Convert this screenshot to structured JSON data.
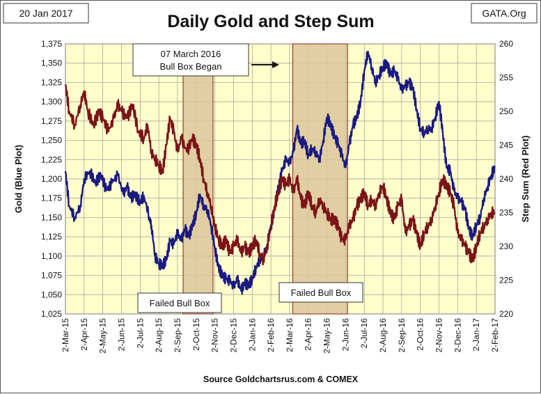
{
  "header": {
    "date": "20 Jan 2017",
    "site": "GATA.Org",
    "source": "Source Goldchartsrus.com & COMEX"
  },
  "annotations": {
    "callout_line1": "07 March 2016",
    "callout_line2": "Bull Box Began",
    "failed_box_1": "Failed Bull Box",
    "failed_box_2": "Failed Bull Box"
  },
  "colors": {
    "plot_bg": "#ffffcc",
    "gold": "#1a1a80",
    "stepsum": "#7a1418",
    "box_fill": "#dcc69a",
    "box_edge": "#8b1a1a"
  },
  "chart_data": {
    "type": "line",
    "title": "Daily Gold and Step Sum",
    "xlabel": "",
    "ylabel": "Gold (Blue Plot)",
    "y2label": "Step Sum (Red Plot)",
    "ylim": [
      1025,
      1375
    ],
    "y2lim": [
      220,
      260
    ],
    "yticks": [
      "1,025",
      "1,050",
      "1,075",
      "1,100",
      "1,125",
      "1,150",
      "1,175",
      "1,200",
      "1,225",
      "1,250",
      "1,275",
      "1,300",
      "1,325",
      "1,350",
      "1,375"
    ],
    "y2ticks": [
      "220",
      "225",
      "230",
      "235",
      "240",
      "245",
      "250",
      "255",
      "260"
    ],
    "xticks": [
      "2-Mar-15",
      "2-Apr-15",
      "2-May-15",
      "2-Jun-15",
      "2-Jul-15",
      "2-Aug-15",
      "2-Sep-15",
      "2-Oct-15",
      "2-Nov-15",
      "2-Dec-15",
      "2-Jan-16",
      "2-Feb-16",
      "2-Mar-16",
      "2-Apr-16",
      "2-May-16",
      "2-Jun-16",
      "2-Jul-16",
      "2-Aug-16",
      "2-Sep-16",
      "2-Oct-16",
      "2-Nov-16",
      "2-Dec-16",
      "2-Jan-17",
      "2-Feb-17"
    ],
    "shaded_periods": [
      {
        "label": "Failed Bull Box",
        "start_month": 6.3,
        "end_month": 7.9
      },
      {
        "label": "07 March 2016 Bull Box",
        "start_month": 12.17,
        "end_month": 15.1
      }
    ],
    "series": [
      {
        "name": "Gold",
        "axis": "left",
        "points": [
          [
            0,
            1210
          ],
          [
            0.2,
            1165
          ],
          [
            0.5,
            1150
          ],
          [
            0.8,
            1165
          ],
          [
            1.0,
            1200
          ],
          [
            1.3,
            1210
          ],
          [
            1.6,
            1195
          ],
          [
            1.9,
            1205
          ],
          [
            2.2,
            1185
          ],
          [
            2.5,
            1195
          ],
          [
            2.8,
            1205
          ],
          [
            3.1,
            1180
          ],
          [
            3.3,
            1190
          ],
          [
            3.5,
            1175
          ],
          [
            3.7,
            1180
          ],
          [
            4.0,
            1170
          ],
          [
            4.2,
            1178
          ],
          [
            4.5,
            1150
          ],
          [
            4.6,
            1140
          ],
          [
            4.8,
            1100
          ],
          [
            5.0,
            1090
          ],
          [
            5.2,
            1088
          ],
          [
            5.4,
            1095
          ],
          [
            5.6,
            1120
          ],
          [
            5.8,
            1115
          ],
          [
            6.0,
            1130
          ],
          [
            6.2,
            1120
          ],
          [
            6.4,
            1135
          ],
          [
            6.6,
            1125
          ],
          [
            6.8,
            1140
          ],
          [
            7.0,
            1155
          ],
          [
            7.2,
            1180
          ],
          [
            7.4,
            1165
          ],
          [
            7.6,
            1160
          ],
          [
            7.8,
            1140
          ],
          [
            8.0,
            1110
          ],
          [
            8.2,
            1085
          ],
          [
            8.4,
            1075
          ],
          [
            8.6,
            1070
          ],
          [
            8.8,
            1068
          ],
          [
            9.0,
            1060
          ],
          [
            9.2,
            1070
          ],
          [
            9.4,
            1055
          ],
          [
            9.6,
            1065
          ],
          [
            9.8,
            1062
          ],
          [
            10.0,
            1070
          ],
          [
            10.2,
            1085
          ],
          [
            10.4,
            1095
          ],
          [
            10.6,
            1100
          ],
          [
            10.8,
            1115
          ],
          [
            11.0,
            1140
          ],
          [
            11.2,
            1160
          ],
          [
            11.4,
            1190
          ],
          [
            11.6,
            1210
          ],
          [
            11.8,
            1225
          ],
          [
            12.0,
            1220
          ],
          [
            12.2,
            1235
          ],
          [
            12.4,
            1265
          ],
          [
            12.6,
            1245
          ],
          [
            12.8,
            1250
          ],
          [
            13.0,
            1230
          ],
          [
            13.2,
            1240
          ],
          [
            13.4,
            1235
          ],
          [
            13.6,
            1225
          ],
          [
            13.8,
            1250
          ],
          [
            14.0,
            1280
          ],
          [
            14.2,
            1270
          ],
          [
            14.4,
            1255
          ],
          [
            14.6,
            1245
          ],
          [
            14.8,
            1230
          ],
          [
            15.0,
            1215
          ],
          [
            15.2,
            1245
          ],
          [
            15.4,
            1270
          ],
          [
            15.6,
            1280
          ],
          [
            15.8,
            1300
          ],
          [
            16.0,
            1340
          ],
          [
            16.2,
            1365
          ],
          [
            16.4,
            1345
          ],
          [
            16.6,
            1325
          ],
          [
            16.8,
            1335
          ],
          [
            17.0,
            1345
          ],
          [
            17.2,
            1350
          ],
          [
            17.4,
            1335
          ],
          [
            17.6,
            1340
          ],
          [
            17.8,
            1330
          ],
          [
            18.0,
            1315
          ],
          [
            18.2,
            1320
          ],
          [
            18.4,
            1325
          ],
          [
            18.6,
            1318
          ],
          [
            18.8,
            1290
          ],
          [
            19.0,
            1265
          ],
          [
            19.2,
            1260
          ],
          [
            19.4,
            1265
          ],
          [
            19.6,
            1265
          ],
          [
            19.8,
            1280
          ],
          [
            20.0,
            1300
          ],
          [
            20.2,
            1260
          ],
          [
            20.4,
            1215
          ],
          [
            20.6,
            1210
          ],
          [
            20.8,
            1185
          ],
          [
            21.0,
            1175
          ],
          [
            21.2,
            1170
          ],
          [
            21.4,
            1160
          ],
          [
            21.6,
            1135
          ],
          [
            21.8,
            1125
          ],
          [
            22.0,
            1140
          ],
          [
            22.2,
            1150
          ],
          [
            22.4,
            1175
          ],
          [
            22.6,
            1190
          ],
          [
            22.8,
            1205
          ],
          [
            23.0,
            1215
          ]
        ]
      },
      {
        "name": "Step Sum",
        "axis": "right",
        "points": [
          [
            0,
            254
          ],
          [
            0.2,
            250
          ],
          [
            0.5,
            248
          ],
          [
            0.8,
            251
          ],
          [
            1.0,
            253
          ],
          [
            1.2,
            250
          ],
          [
            1.5,
            248
          ],
          [
            1.8,
            250
          ],
          [
            2.0,
            249
          ],
          [
            2.3,
            247
          ],
          [
            2.6,
            249
          ],
          [
            2.8,
            251
          ],
          [
            3.0,
            250
          ],
          [
            3.3,
            249
          ],
          [
            3.6,
            251
          ],
          [
            3.9,
            247
          ],
          [
            4.2,
            246
          ],
          [
            4.4,
            248
          ],
          [
            4.6,
            244
          ],
          [
            4.8,
            243
          ],
          [
            5.0,
            242
          ],
          [
            5.2,
            241
          ],
          [
            5.4,
            245
          ],
          [
            5.6,
            249
          ],
          [
            5.8,
            247
          ],
          [
            6.0,
            244
          ],
          [
            6.2,
            246
          ],
          [
            6.5,
            244
          ],
          [
            6.8,
            246
          ],
          [
            7.0,
            245
          ],
          [
            7.2,
            243
          ],
          [
            7.4,
            240
          ],
          [
            7.6,
            238
          ],
          [
            7.8,
            236
          ],
          [
            8.0,
            233
          ],
          [
            8.2,
            231
          ],
          [
            8.4,
            230
          ],
          [
            8.6,
            231
          ],
          [
            8.8,
            229
          ],
          [
            9.0,
            230
          ],
          [
            9.2,
            231
          ],
          [
            9.4,
            229
          ],
          [
            9.6,
            230
          ],
          [
            9.8,
            229
          ],
          [
            10.0,
            230
          ],
          [
            10.2,
            231
          ],
          [
            10.4,
            229
          ],
          [
            10.6,
            228
          ],
          [
            10.8,
            230
          ],
          [
            11.0,
            233
          ],
          [
            11.2,
            236
          ],
          [
            11.4,
            238
          ],
          [
            11.6,
            240
          ],
          [
            11.8,
            239
          ],
          [
            12.0,
            240
          ],
          [
            12.2,
            238
          ],
          [
            12.4,
            240
          ],
          [
            12.6,
            237
          ],
          [
            12.8,
            236
          ],
          [
            13.0,
            238
          ],
          [
            13.2,
            236
          ],
          [
            13.4,
            235
          ],
          [
            13.6,
            237
          ],
          [
            13.8,
            236
          ],
          [
            14.0,
            235
          ],
          [
            14.2,
            234
          ],
          [
            14.4,
            234
          ],
          [
            14.6,
            233
          ],
          [
            14.8,
            231
          ],
          [
            15.0,
            231
          ],
          [
            15.2,
            233
          ],
          [
            15.4,
            234
          ],
          [
            15.6,
            236
          ],
          [
            15.8,
            237
          ],
          [
            16.0,
            238
          ],
          [
            16.2,
            236
          ],
          [
            16.4,
            237
          ],
          [
            16.6,
            236
          ],
          [
            16.8,
            238
          ],
          [
            17.0,
            239
          ],
          [
            17.2,
            237
          ],
          [
            17.4,
            235
          ],
          [
            17.6,
            234
          ],
          [
            17.8,
            236
          ],
          [
            18.0,
            237
          ],
          [
            18.2,
            232
          ],
          [
            18.4,
            233
          ],
          [
            18.6,
            234
          ],
          [
            18.8,
            232
          ],
          [
            19.0,
            230
          ],
          [
            19.2,
            232
          ],
          [
            19.4,
            233
          ],
          [
            19.6,
            234
          ],
          [
            19.8,
            236
          ],
          [
            20.0,
            238
          ],
          [
            20.2,
            240
          ],
          [
            20.4,
            239
          ],
          [
            20.6,
            238
          ],
          [
            20.8,
            236
          ],
          [
            21.0,
            232
          ],
          [
            21.2,
            231
          ],
          [
            21.4,
            230
          ],
          [
            21.6,
            229
          ],
          [
            21.8,
            228
          ],
          [
            22.0,
            230
          ],
          [
            22.2,
            232
          ],
          [
            22.4,
            233
          ],
          [
            22.6,
            234
          ],
          [
            22.8,
            235
          ],
          [
            23.0,
            235
          ]
        ]
      }
    ]
  }
}
